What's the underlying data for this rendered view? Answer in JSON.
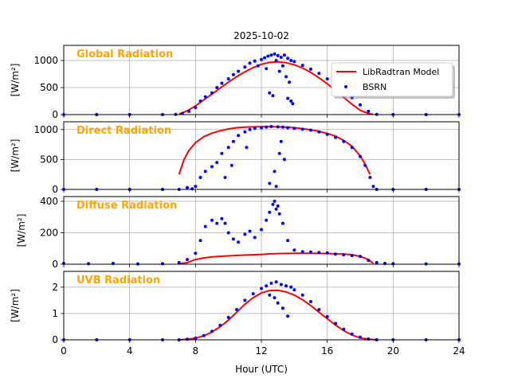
{
  "title": "2025-10-02",
  "colors": {
    "model": "#ff0000",
    "bsrn": "#0000ff",
    "panel_title": "#ffa500",
    "grid": "#b0b0b0"
  },
  "legend": {
    "model_label": "LibRadtran Model",
    "bsrn_label": "BSRN",
    "location": "upper-right"
  },
  "chart_data": [
    {
      "type": "line",
      "title": "Global Radiation",
      "xlabel": "Hour (UTC)",
      "ylabel": "[W/m²]",
      "ylim": [
        0,
        1280
      ],
      "yticks": [
        0,
        500,
        1000
      ],
      "series": [
        {
          "name": "LibRadtran Model",
          "style": "line",
          "x": [
            7,
            7.5,
            8,
            8.5,
            9,
            9.5,
            10,
            10.5,
            11,
            11.5,
            12,
            12.5,
            13,
            13.5,
            14,
            14.5,
            15,
            15.5,
            16,
            16.5,
            17,
            17.5,
            18,
            18.5,
            18.8
          ],
          "y": [
            10,
            70,
            160,
            270,
            380,
            490,
            600,
            700,
            790,
            870,
            930,
            965,
            975,
            960,
            920,
            860,
            780,
            680,
            570,
            450,
            320,
            190,
            80,
            20,
            5
          ]
        },
        {
          "name": "BSRN",
          "style": "scatter",
          "x": [
            0,
            2,
            4,
            6,
            6.8,
            7.2,
            7.6,
            8,
            8.3,
            8.6,
            9,
            9.3,
            9.6,
            10,
            10.3,
            10.6,
            11,
            11.3,
            11.6,
            12,
            12.2,
            12.4,
            12.6,
            12.8,
            13,
            13.2,
            13.4,
            13.6,
            13.8,
            14,
            14.5,
            15,
            15.5,
            16,
            16.5,
            17,
            17.5,
            18,
            18.5,
            19,
            20,
            22,
            24,
            12.5,
            12.7,
            13.1,
            13.3,
            13.5,
            13.7,
            13.9,
            12.3,
            11.8,
            12.9,
            13.6,
            13.8
          ],
          "y": [
            0,
            0,
            0,
            0,
            5,
            20,
            60,
            130,
            250,
            330,
            400,
            500,
            580,
            660,
            740,
            800,
            880,
            950,
            990,
            1020,
            1050,
            1080,
            1100,
            1120,
            1090,
            1060,
            1100,
            1040,
            1000,
            980,
            910,
            840,
            760,
            660,
            560,
            440,
            310,
            180,
            60,
            5,
            0,
            0,
            0,
            400,
            350,
            800,
            900,
            700,
            600,
            200,
            850,
            900,
            1000,
            300,
            250
          ]
        }
      ]
    },
    {
      "type": "line",
      "title": "Direct Radiation",
      "xlabel": "Hour (UTC)",
      "ylabel": "[W/m²]",
      "ylim": [
        0,
        1130
      ],
      "yticks": [
        0,
        500,
        1000
      ],
      "series": [
        {
          "name": "LibRadtran Model",
          "style": "line",
          "x": [
            7,
            7.3,
            7.6,
            8,
            8.5,
            9,
            9.5,
            10,
            10.5,
            11,
            11.5,
            12,
            12.5,
            13,
            13.5,
            14,
            14.5,
            15,
            15.5,
            16,
            16.5,
            17,
            17.5,
            18,
            18.3,
            18.6
          ],
          "y": [
            250,
            500,
            650,
            780,
            880,
            940,
            980,
            1010,
            1030,
            1040,
            1045,
            1048,
            1048,
            1045,
            1040,
            1030,
            1015,
            995,
            970,
            935,
            890,
            820,
            720,
            560,
            420,
            250
          ]
        },
        {
          "name": "BSRN",
          "style": "scatter",
          "x": [
            0,
            2,
            4,
            6,
            7,
            7.5,
            7.8,
            8,
            8.3,
            8.6,
            9,
            9.3,
            9.6,
            10,
            10.3,
            10.6,
            11,
            11.3,
            11.6,
            12,
            12.3,
            12.6,
            13,
            13.3,
            13.6,
            14,
            14.5,
            15,
            15.5,
            16,
            16.5,
            17,
            17.5,
            18,
            18.3,
            18.6,
            18.8,
            19,
            20,
            22,
            24,
            12.8,
            13.1,
            13.4,
            9.8,
            10.2,
            11.1,
            12.5,
            12.9,
            13.2
          ],
          "y": [
            0,
            0,
            0,
            0,
            0,
            30,
            10,
            50,
            200,
            300,
            380,
            450,
            600,
            700,
            800,
            900,
            960,
            1000,
            1020,
            1030,
            1040,
            1050,
            1045,
            1040,
            1030,
            1020,
            1005,
            990,
            960,
            920,
            870,
            800,
            700,
            550,
            400,
            200,
            50,
            0,
            0,
            0,
            0,
            300,
            600,
            500,
            200,
            400,
            700,
            100,
            50,
            800
          ]
        }
      ]
    },
    {
      "type": "line",
      "title": "Diffuse Radiation",
      "xlabel": "Hour (UTC)",
      "ylabel": "[W/m²]",
      "ylim": [
        0,
        430
      ],
      "yticks": [
        0,
        200,
        400
      ],
      "series": [
        {
          "name": "LibRadtran Model",
          "style": "line",
          "x": [
            7,
            7.5,
            8,
            8.5,
            9,
            10,
            11,
            12,
            12.5,
            13,
            14,
            15,
            16,
            17,
            17.5,
            18,
            18.5,
            18.8
          ],
          "y": [
            2,
            10,
            30,
            40,
            47,
            53,
            58,
            62,
            66,
            68,
            70,
            70,
            68,
            64,
            60,
            50,
            30,
            5
          ]
        },
        {
          "name": "BSRN",
          "style": "scatter",
          "x": [
            0,
            1.5,
            3,
            4.5,
            6,
            7,
            7.5,
            8,
            8.3,
            8.6,
            9,
            9.3,
            9.6,
            9.8,
            10,
            10.3,
            10.6,
            11,
            11.3,
            11.6,
            12,
            12.3,
            12.5,
            12.7,
            12.9,
            13.1,
            13.3,
            13.6,
            14,
            14.5,
            15,
            15.5,
            16,
            16.5,
            17,
            17.5,
            18,
            18.5,
            19,
            19.5,
            20,
            22,
            24,
            12.8,
            13.0
          ],
          "y": [
            5,
            3,
            5,
            2,
            3,
            10,
            30,
            70,
            150,
            240,
            280,
            260,
            290,
            260,
            200,
            160,
            140,
            190,
            210,
            170,
            220,
            280,
            330,
            380,
            350,
            320,
            260,
            150,
            90,
            80,
            78,
            75,
            72,
            65,
            60,
            55,
            50,
            25,
            10,
            5,
            3,
            2,
            2,
            400,
            370
          ]
        }
      ]
    },
    {
      "type": "line",
      "title": "UVB Radiation",
      "xlabel": "Hour (UTC)",
      "ylabel": "[W/m²]",
      "ylim": [
        0,
        2.6
      ],
      "yticks": [
        0,
        1,
        2
      ],
      "xticks": [
        0,
        4,
        8,
        12,
        16,
        20,
        24
      ],
      "xlim": [
        0,
        24
      ],
      "series": [
        {
          "name": "LibRadtran Model",
          "style": "line",
          "x": [
            7,
            7.5,
            8,
            8.5,
            9,
            9.5,
            10,
            10.5,
            11,
            11.5,
            12,
            12.5,
            13,
            13.5,
            14,
            14.5,
            15,
            15.5,
            16,
            16.5,
            17,
            17.5,
            18,
            18.5,
            19
          ],
          "y": [
            0,
            0.02,
            0.06,
            0.15,
            0.3,
            0.5,
            0.75,
            1.05,
            1.35,
            1.6,
            1.78,
            1.87,
            1.88,
            1.82,
            1.7,
            1.52,
            1.3,
            1.05,
            0.8,
            0.56,
            0.35,
            0.18,
            0.07,
            0.02,
            0
          ]
        },
        {
          "name": "BSRN",
          "style": "scatter",
          "x": [
            0,
            2,
            4,
            6,
            7,
            7.5,
            8,
            8.5,
            9,
            9.5,
            10,
            10.5,
            11,
            11.5,
            12,
            12.3,
            12.6,
            12.9,
            13.2,
            13.5,
            13.8,
            14,
            14.5,
            15,
            15.5,
            16,
            16.5,
            17,
            17.5,
            18,
            18.5,
            19,
            20,
            22,
            24,
            13.0,
            13.3,
            13.6,
            12.8,
            12.5
          ],
          "y": [
            0,
            0,
            0,
            0,
            0,
            0.02,
            0.06,
            0.16,
            0.32,
            0.55,
            0.85,
            1.15,
            1.5,
            1.75,
            1.95,
            2.05,
            2.15,
            2.2,
            2.1,
            2.05,
            2.0,
            1.9,
            1.7,
            1.45,
            1.15,
            0.88,
            0.62,
            0.4,
            0.22,
            0.1,
            0.03,
            0,
            0,
            0,
            0,
            1.4,
            1.2,
            0.9,
            1.6,
            1.7
          ]
        }
      ]
    }
  ]
}
